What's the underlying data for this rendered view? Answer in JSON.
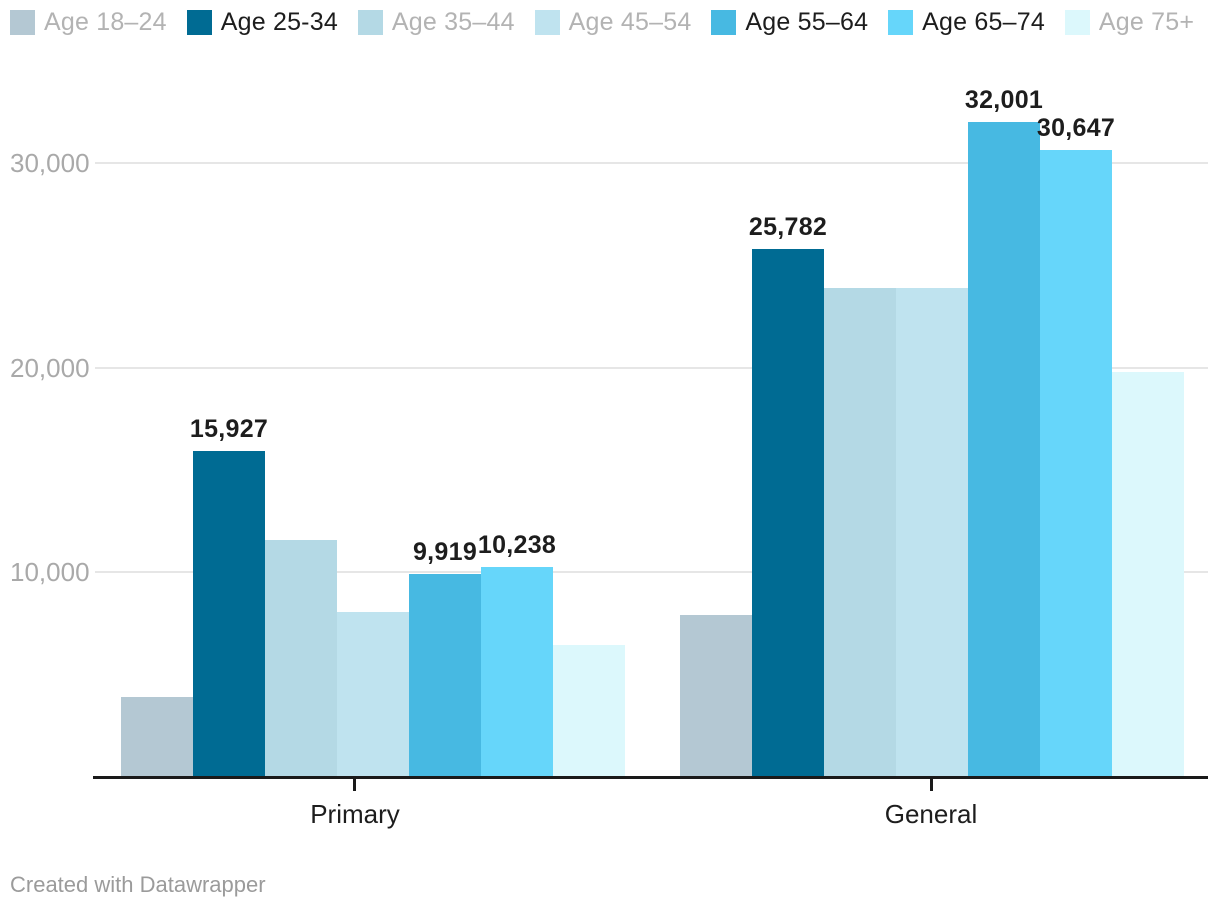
{
  "legend": {
    "items": [
      {
        "label": "Age 18–24",
        "color": "#b4c8d3",
        "dimmed": true
      },
      {
        "label": "Age 25-34",
        "color": "#006b93",
        "dimmed": false
      },
      {
        "label": "Age 35–44",
        "color": "#b4d9e5",
        "dimmed": true
      },
      {
        "label": "Age 45–54",
        "color": "#bfe3ef",
        "dimmed": true
      },
      {
        "label": "Age 55–64",
        "color": "#47b9e2",
        "dimmed": false
      },
      {
        "label": "Age 65–74",
        "color": "#66d6fa",
        "dimmed": false
      },
      {
        "label": "Age 75+",
        "color": "#dcf8fc",
        "dimmed": true
      }
    ]
  },
  "chart_data": {
    "type": "bar",
    "categories": [
      "Primary",
      "General"
    ],
    "series": [
      {
        "name": "Age 18–24",
        "color": "#b4c8d3",
        "values": [
          3900,
          7900
        ],
        "labels": [
          null,
          null
        ]
      },
      {
        "name": "Age 25-34",
        "color": "#006b93",
        "values": [
          15927,
          25782
        ],
        "labels": [
          "15,927",
          "25,782"
        ]
      },
      {
        "name": "Age 35–44",
        "color": "#b4d9e5",
        "values": [
          11600,
          23900
        ],
        "labels": [
          null,
          null
        ]
      },
      {
        "name": "Age 45–54",
        "color": "#bfe3ef",
        "values": [
          8050,
          23900
        ],
        "labels": [
          null,
          null
        ]
      },
      {
        "name": "Age 55–64",
        "color": "#47b9e2",
        "values": [
          9919,
          32001
        ],
        "labels": [
          "9,919",
          "32,001"
        ]
      },
      {
        "name": "Age 65–74",
        "color": "#66d6fa",
        "values": [
          10238,
          30647
        ],
        "labels": [
          "10,238",
          "30,647"
        ]
      },
      {
        "name": "Age 75+",
        "color": "#dcf8fc",
        "values": [
          6450,
          19800
        ],
        "labels": [
          null,
          null
        ]
      }
    ],
    "yticks": [
      {
        "value": 10000,
        "label": "10,000"
      },
      {
        "value": 20000,
        "label": "20,000"
      },
      {
        "value": 30000,
        "label": "30,000"
      }
    ],
    "ylim": [
      0,
      33500
    ],
    "grid": true,
    "legend_position": "top",
    "title": "",
    "xlabel": "",
    "ylabel": ""
  },
  "colors": {
    "axis": "#1a1a1a",
    "gridline": "#e6e6e6",
    "ytick_text": "#a9a9a9",
    "label_text": "#1d1d1d",
    "dimmed_text": "#b3b3b3",
    "footer_text": "#9b9b9b",
    "background": "#ffffff"
  },
  "footer": {
    "credit": "Created with Datawrapper"
  }
}
